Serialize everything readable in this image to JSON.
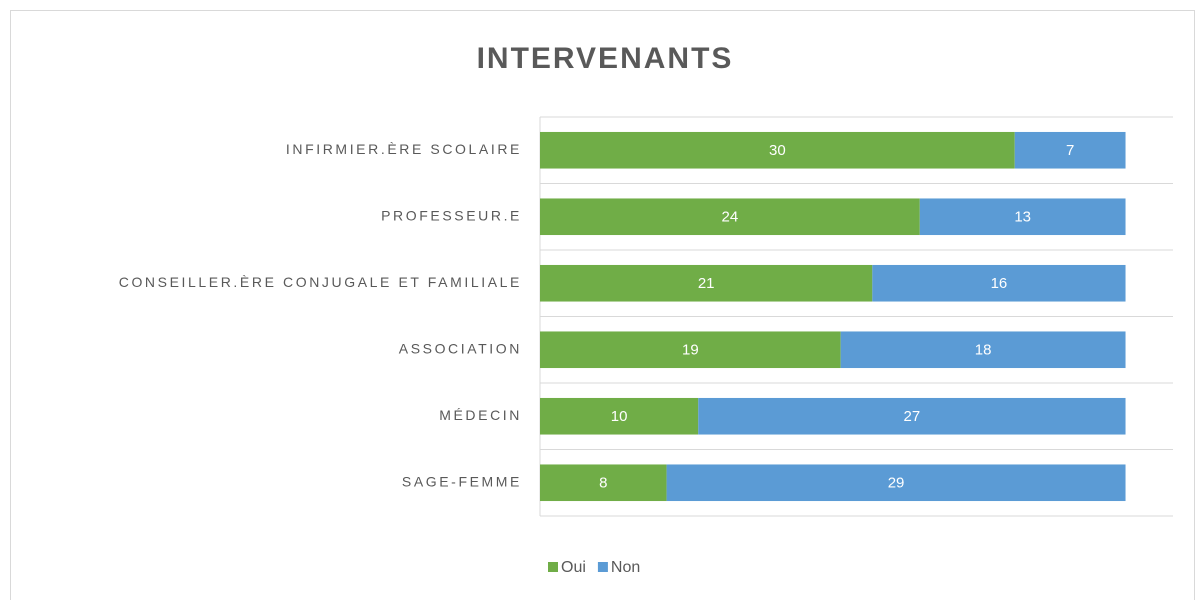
{
  "chart_data": {
    "type": "stacked_bar_horizontal",
    "title": "INTERVENANTS",
    "categories": [
      "INFIRMIER.ÈRE SCOLAIRE",
      "PROFESSEUR.E",
      "CONSEILLER.ÈRE CONJUGALE ET FAMILIALE",
      "ASSOCIATION",
      "MÉDECIN",
      "SAGE-FEMME"
    ],
    "series": [
      {
        "name": "Oui",
        "color": "#70ad47",
        "values": [
          30,
          24,
          21,
          19,
          10,
          8
        ]
      },
      {
        "name": "Non",
        "color": "#5b9bd5",
        "values": [
          7,
          13,
          16,
          18,
          27,
          29
        ]
      }
    ],
    "xlim": [
      0,
      40
    ],
    "legend": "bottom"
  }
}
